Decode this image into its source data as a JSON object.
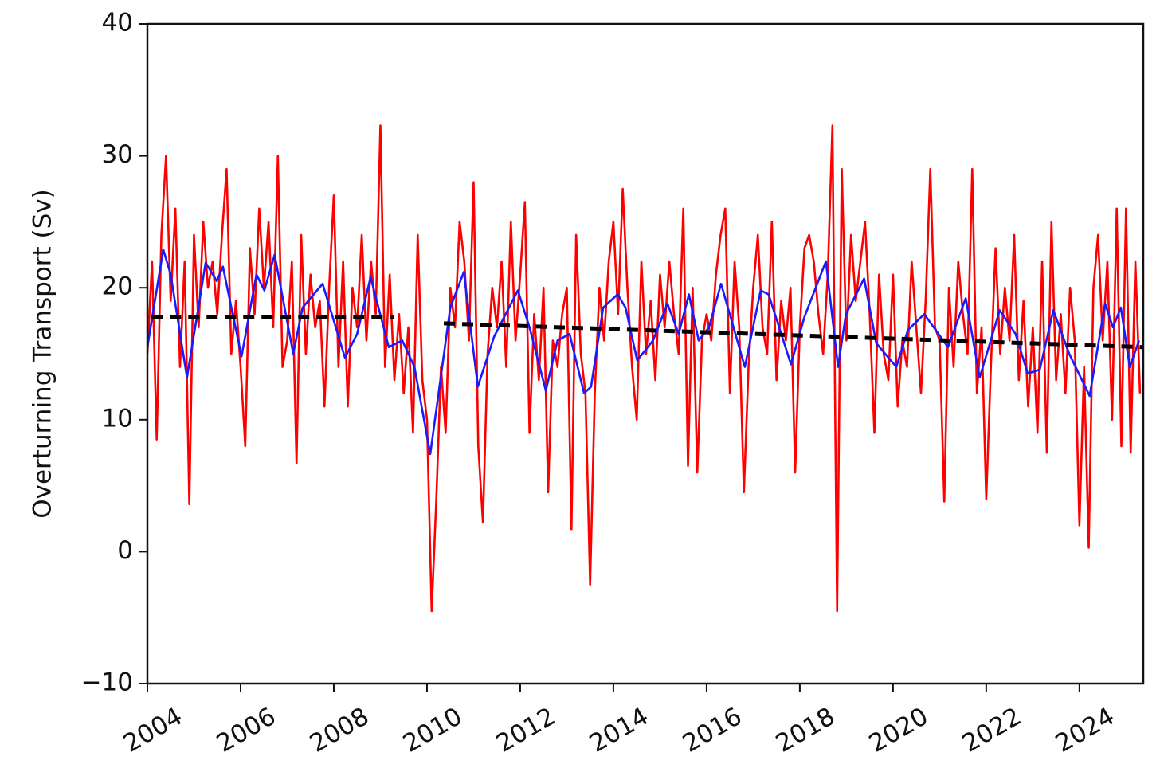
{
  "chart_data": {
    "type": "line",
    "y_label": "Overturning Transport (Sv)",
    "xlim": [
      2004,
      2025.37
    ],
    "xticks": [
      2004,
      2006,
      2008,
      2010,
      2012,
      2014,
      2016,
      2018,
      2020,
      2022,
      2024
    ],
    "ylim": [
      -10,
      40
    ],
    "yticks": [
      {
        "value": -10,
        "label": "−10"
      },
      0,
      10,
      20,
      30,
      40
    ],
    "grid": false,
    "series": [
      {
        "color": "#ff0000",
        "style": "solid",
        "x": [
          2004,
          2004.1,
          2004.2,
          2004.3,
          2004.4,
          2004.5,
          2004.6,
          2004.7,
          2004.8,
          2004.9,
          2005,
          2005.1,
          2005.2,
          2005.3,
          2005.4,
          2005.5,
          2005.6,
          2005.7,
          2005.8,
          2005.9,
          2006,
          2006.1,
          2006.2,
          2006.3,
          2006.4,
          2006.5,
          2006.6,
          2006.7,
          2006.8,
          2006.9,
          2007,
          2007.1,
          2007.2,
          2007.3,
          2007.4,
          2007.5,
          2007.6,
          2007.7,
          2007.8,
          2007.9,
          2008,
          2008.1,
          2008.2,
          2008.3,
          2008.4,
          2008.5,
          2008.6,
          2008.7,
          2008.8,
          2008.9,
          2009,
          2009.1,
          2009.2,
          2009.3,
          2009.4,
          2009.5,
          2009.6,
          2009.7,
          2009.8,
          2009.9,
          2010,
          2010.1,
          2010.2,
          2010.3,
          2010.4,
          2010.5,
          2010.6,
          2010.7,
          2010.8,
          2010.9,
          2011,
          2011.1,
          2011.2,
          2011.3,
          2011.4,
          2011.5,
          2011.6,
          2011.7,
          2011.8,
          2011.9,
          2012,
          2012.1,
          2012.2,
          2012.3,
          2012.4,
          2012.5,
          2012.6,
          2012.7,
          2012.8,
          2012.9,
          2013,
          2013.1,
          2013.2,
          2013.3,
          2013.4,
          2013.5,
          2013.6,
          2013.7,
          2013.8,
          2013.9,
          2014,
          2014.1,
          2014.2,
          2014.3,
          2014.4,
          2014.5,
          2014.6,
          2014.7,
          2014.8,
          2014.9,
          2015,
          2015.1,
          2015.2,
          2015.3,
          2015.4,
          2015.5,
          2015.6,
          2015.7,
          2015.8,
          2015.9,
          2016,
          2016.1,
          2016.2,
          2016.3,
          2016.4,
          2016.5,
          2016.6,
          2016.7,
          2016.8,
          2016.9,
          2017,
          2017.1,
          2017.2,
          2017.3,
          2017.4,
          2017.5,
          2017.6,
          2017.7,
          2017.8,
          2017.9,
          2018,
          2018.1,
          2018.2,
          2018.3,
          2018.4,
          2018.5,
          2018.6,
          2018.7,
          2018.8,
          2018.9,
          2019,
          2019.1,
          2019.2,
          2019.3,
          2019.4,
          2019.5,
          2019.6,
          2019.7,
          2019.8,
          2019.9,
          2020,
          2020.1,
          2020.2,
          2020.3,
          2020.4,
          2020.5,
          2020.6,
          2020.7,
          2020.8,
          2020.9,
          2021,
          2021.1,
          2021.2,
          2021.3,
          2021.4,
          2021.5,
          2021.6,
          2021.7,
          2021.8,
          2021.9,
          2022,
          2022.1,
          2022.2,
          2022.3,
          2022.4,
          2022.5,
          2022.6,
          2022.7,
          2022.8,
          2022.9,
          2023,
          2023.1,
          2023.2,
          2023.3,
          2023.4,
          2023.5,
          2023.6,
          2023.7,
          2023.8,
          2023.9,
          2024,
          2024.1,
          2024.2,
          2024.3,
          2024.4,
          2024.5,
          2024.6,
          2024.7,
          2024.8,
          2024.9,
          2025,
          2025.1,
          2025.2,
          2025.3
        ],
        "values": [
          15,
          22,
          8.5,
          24,
          30,
          19,
          26,
          14,
          22,
          3.6,
          24,
          17,
          25,
          20,
          22,
          18,
          24,
          29,
          15,
          19,
          14,
          8,
          23,
          18,
          26,
          20,
          25,
          17,
          30,
          14,
          16,
          22,
          6.7,
          24,
          15,
          21,
          17,
          19,
          11,
          20,
          27,
          14,
          22,
          11,
          20,
          17,
          24,
          16,
          22,
          18,
          32.3,
          14,
          21,
          13,
          18,
          12,
          17,
          9,
          24,
          13,
          10,
          -4.5,
          4,
          14,
          9,
          20,
          17,
          25,
          22,
          16,
          28,
          8,
          2.2,
          15,
          20,
          17,
          22,
          14,
          25,
          16,
          21,
          26.5,
          9,
          18,
          13,
          20,
          4.5,
          16,
          14,
          18,
          20,
          1.7,
          24,
          15,
          12,
          -2.5,
          12,
          20,
          16,
          22,
          25,
          18,
          27.5,
          20,
          14,
          10,
          22,
          15,
          19,
          13,
          21,
          17,
          22,
          18,
          15,
          26,
          6.5,
          20,
          6,
          16,
          18,
          16,
          21,
          24,
          26,
          12,
          22,
          17,
          4.5,
          14,
          20,
          24,
          17,
          15,
          25,
          13,
          19,
          16,
          20,
          6,
          17,
          23,
          24,
          22,
          18,
          15,
          21,
          32.3,
          -4.5,
          29,
          16,
          24,
          19,
          22,
          25,
          18,
          9,
          21,
          15,
          13,
          21,
          11,
          16,
          14,
          22,
          17,
          12,
          19,
          29,
          17,
          16,
          3.8,
          20,
          14,
          22,
          18,
          15,
          29,
          12,
          17,
          4,
          14,
          23,
          15,
          20,
          16,
          24,
          13,
          19,
          11,
          17,
          9,
          22,
          7.5,
          25,
          13,
          18,
          12,
          20,
          16,
          2,
          14,
          0.3,
          20,
          24,
          16,
          22,
          10,
          26,
          8,
          26,
          7.5,
          22,
          12
        ]
      },
      {
        "color": "#1a1aff",
        "style": "solid",
        "x": [
          2004,
          2004.34,
          2004.5,
          2004.85,
          2005.25,
          2005.49,
          2005.62,
          2006.02,
          2006.34,
          2006.51,
          2006.73,
          2007.13,
          2007.33,
          2007.76,
          2008.24,
          2008.5,
          2008.79,
          2009.18,
          2009.47,
          2009.73,
          2010.07,
          2010.5,
          2010.79,
          2011.09,
          2011.44,
          2011.95,
          2012.2,
          2012.55,
          2012.8,
          2013.06,
          2013.37,
          2013.52,
          2013.78,
          2014.09,
          2014.26,
          2014.51,
          2014.85,
          2015.16,
          2015.4,
          2015.62,
          2015.83,
          2016.05,
          2016.31,
          2016.82,
          2017.16,
          2017.33,
          2017.81,
          2018.1,
          2018.56,
          2018.82,
          2018.99,
          2019.38,
          2019.64,
          2020.07,
          2020.32,
          2020.67,
          2021.18,
          2021.56,
          2021.86,
          2022.29,
          2022.63,
          2022.89,
          2023.15,
          2023.44,
          2023.78,
          2024.22,
          2024.55,
          2024.72,
          2024.89,
          2025.08,
          2025.28
        ],
        "values": [
          15.5,
          22.9,
          21,
          13.2,
          21.9,
          20.5,
          21.6,
          14.8,
          21,
          19.8,
          22.5,
          15,
          18.5,
          20.3,
          14.7,
          16.5,
          20.8,
          15.5,
          16,
          14,
          7.4,
          18.5,
          21.2,
          12.5,
          16.3,
          19.8,
          17,
          12.2,
          16,
          16.5,
          12,
          12.5,
          18.5,
          19.5,
          18.5,
          14.5,
          16,
          18.8,
          16.5,
          19.5,
          16,
          17,
          20.3,
          14,
          19.8,
          19.5,
          14.2,
          17.8,
          22,
          14,
          18,
          20.7,
          15.8,
          14,
          16.8,
          18,
          15.5,
          19.2,
          13.2,
          18.3,
          16.5,
          13.5,
          13.8,
          18.3,
          15,
          11.8,
          18.8,
          17,
          18.5,
          14,
          16
        ]
      },
      {
        "color": "#000000",
        "style": "dashed",
        "x": [
          2004.09,
          2009.3,
          2009.8,
          2010.36,
          2025.37
        ],
        "values": [
          17.8,
          17.8,
          null,
          17.3,
          15.5
        ]
      }
    ]
  }
}
